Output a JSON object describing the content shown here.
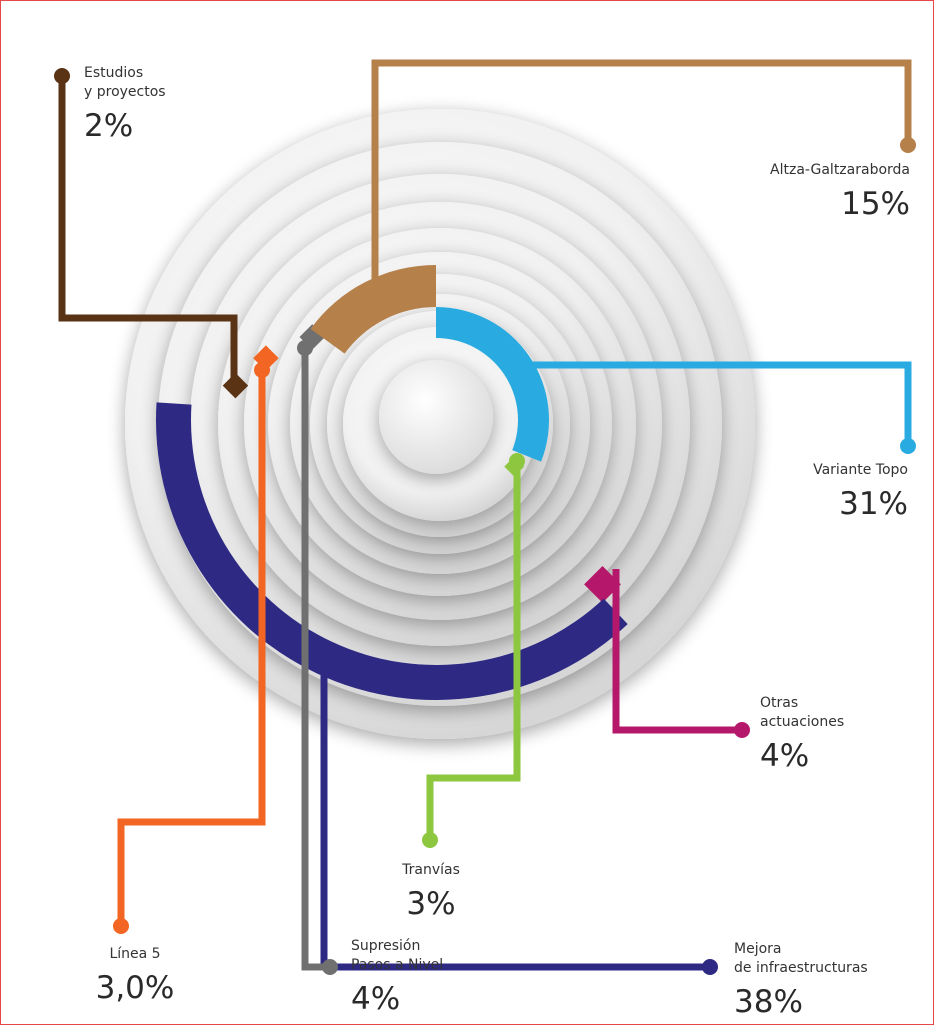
{
  "colors": {
    "border": "#e8474a",
    "estudios": "#5a3214",
    "altza": "#b5804a",
    "variante": "#29abe2",
    "tranvias": "#8dc63f",
    "otras": "#b5186b",
    "mejora": "#2e2a84",
    "linea5": "#f26522",
    "supresion": "#707070"
  },
  "chart_data": {
    "type": "pie",
    "title": "",
    "slices": [
      {
        "key": "variante",
        "name_lines": [
          "Variante Topo"
        ],
        "value": 31,
        "pct_text": "31%"
      },
      {
        "key": "altza",
        "name_lines": [
          "Altza-Galtzaraborda"
        ],
        "value": 15,
        "pct_text": "15%"
      },
      {
        "key": "mejora",
        "name_lines": [
          "Mejora",
          "de infraestructuras"
        ],
        "value": 38,
        "pct_text": "38%"
      },
      {
        "key": "otras",
        "name_lines": [
          "Otras",
          "actuaciones"
        ],
        "value": 4,
        "pct_text": "4%"
      },
      {
        "key": "tranvias",
        "name_lines": [
          "Tranvías"
        ],
        "value": 3,
        "pct_text": "3%"
      },
      {
        "key": "estudios",
        "name_lines": [
          "Estudios",
          "y proyectos"
        ],
        "value": 2,
        "pct_text": "2%"
      },
      {
        "key": "linea5",
        "name_lines": [
          "Línea 5"
        ],
        "value": 3.0,
        "pct_text": "3,0%"
      },
      {
        "key": "supresion",
        "name_lines": [
          "Supresión",
          "Pasos a Nivel"
        ],
        "value": 4,
        "pct_text": "4%"
      }
    ]
  }
}
